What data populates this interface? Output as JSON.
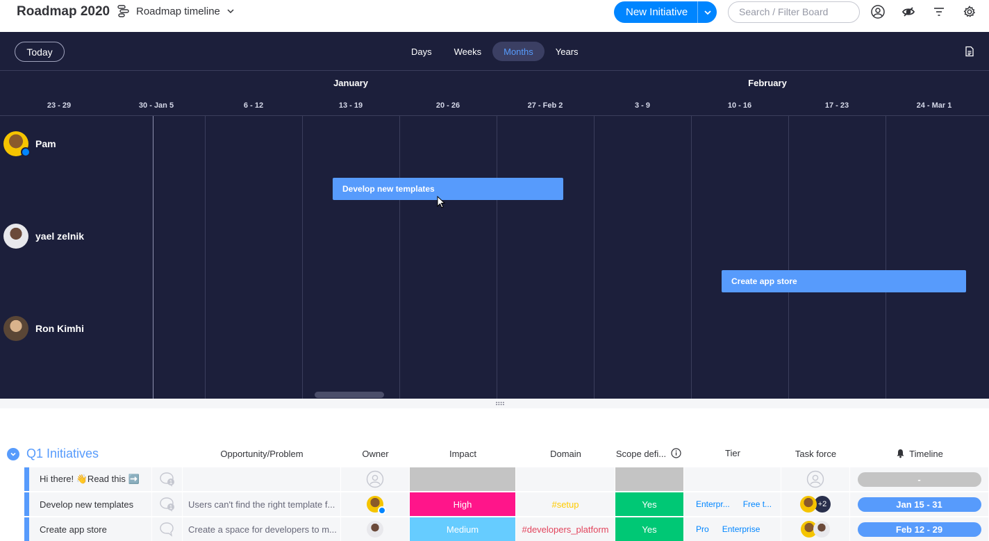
{
  "header": {
    "board_title": "Roadmap 2020",
    "view_name": "Roadmap timeline",
    "new_button_label": "New Initiative",
    "search_placeholder": "Search / Filter Board",
    "accent_color": "#0085ff"
  },
  "timeline_toolbar": {
    "today_label": "Today",
    "scales": [
      {
        "label": "Days",
        "active": false
      },
      {
        "label": "Weeks",
        "active": false
      },
      {
        "label": "Months",
        "active": true
      },
      {
        "label": "Years",
        "active": false
      }
    ]
  },
  "timeline": {
    "months": [
      "January",
      "February"
    ],
    "weeks": [
      "23 - 29",
      "30 - Jan 5",
      "6 - 12",
      "13 - 19",
      "20 - 26",
      "27 - Feb 2",
      "3 - 9",
      "10 - 16",
      "17 - 23",
      "24 - Mar 1"
    ],
    "people": [
      {
        "name": "Pam"
      },
      {
        "name": "yael zelnik"
      },
      {
        "name": "Ron Kimhi"
      }
    ],
    "bars": [
      {
        "label": "Develop new templates",
        "color": "#579bfc"
      },
      {
        "label": "Create app store",
        "color": "#579bfc"
      }
    ]
  },
  "board": {
    "group_name": "Q1 Initiatives",
    "group_color": "#579bfc",
    "columns": {
      "opportunity": "Opportunity/Problem",
      "owner": "Owner",
      "impact": "Impact",
      "domain": "Domain",
      "scope": "Scope defi...",
      "tier": "Tier",
      "task_force": "Task force",
      "timeline": "Timeline"
    },
    "rows": [
      {
        "name": "Hi there! 👋Read this ➡️",
        "updates": "1",
        "opportunity": "",
        "impact": "",
        "impact_color": "#c4c4c4",
        "domain": "",
        "domain_color": "#323338",
        "scope": "",
        "scope_color": "#c4c4c4",
        "tier_1": "",
        "tier_2": "",
        "task_force_extra": "",
        "timeline": "-",
        "timeline_color": "#c4c4c4"
      },
      {
        "name": "Develop new templates",
        "updates": "1",
        "opportunity": "Users can't find the right template f...",
        "impact": "High",
        "impact_color": "#ff158a",
        "domain": "#setup",
        "domain_color": "#ffcb00",
        "scope": "Yes",
        "scope_color": "#00c875",
        "tier_1": "Enterpr...",
        "tier_2": "Free t...",
        "task_force_extra": "+2",
        "timeline": "Jan 15 - 31",
        "timeline_color": "#579bfc"
      },
      {
        "name": "Create app store",
        "updates": "",
        "opportunity": "Create a space for developers to m...",
        "impact": "Medium",
        "impact_color": "#66ccff",
        "domain": "#developers_platform",
        "domain_color": "#e2445c",
        "scope": "Yes",
        "scope_color": "#00c875",
        "tier_1": "Pro",
        "tier_2": "Enterprise",
        "task_force_extra": "",
        "timeline": "Feb 12 - 29",
        "timeline_color": "#579bfc"
      }
    ]
  }
}
